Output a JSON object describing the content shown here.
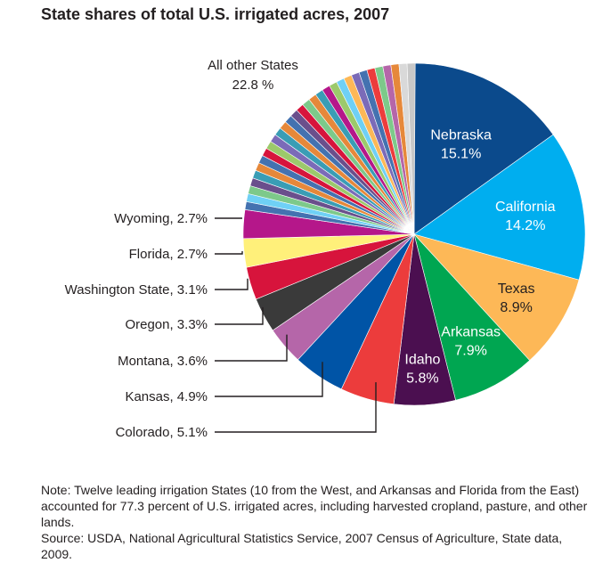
{
  "chart_data": {
    "type": "pie",
    "title": "State shares of total U.S. irrigated acres, 2007",
    "slices": [
      {
        "name": "Nebraska",
        "value": 15.1,
        "label": "15.1%",
        "color": "#0b4a8c",
        "text_color": "#ffffff"
      },
      {
        "name": "California",
        "value": 14.2,
        "label": "14.2%",
        "color": "#00aeef",
        "text_color": "#ffffff"
      },
      {
        "name": "Texas",
        "value": 8.9,
        "label": "8.9%",
        "color": "#fdb857",
        "text_color": "#231f20"
      },
      {
        "name": "Arkansas",
        "value": 7.9,
        "label": "7.9%",
        "color": "#00a651",
        "text_color": "#ffffff"
      },
      {
        "name": "Idaho",
        "value": 5.8,
        "label": "5.8%",
        "color": "#4b0f50",
        "text_color": "#ffffff"
      },
      {
        "name": "Colorado",
        "value": 5.1,
        "label": "Colorado, 5.1%",
        "color": "#ec3c3c"
      },
      {
        "name": "Kansas",
        "value": 4.9,
        "label": "Kansas, 4.9%",
        "color": "#0054a6"
      },
      {
        "name": "Montana",
        "value": 3.6,
        "label": "Montana, 3.6%",
        "color": "#b566a9"
      },
      {
        "name": "Oregon",
        "value": 3.3,
        "label": "Oregon, 3.3%",
        "color": "#3a3a3a"
      },
      {
        "name": "Washington State",
        "value": 3.1,
        "label": "Washington State, 3.1%",
        "color": "#d7143c"
      },
      {
        "name": "Florida",
        "value": 2.7,
        "label": "Florida, 2.7%",
        "color": "#fff07a"
      },
      {
        "name": "Wyoming",
        "value": 2.7,
        "label": "Wyoming, 2.7%",
        "color": "#b5178a"
      },
      {
        "name": "All other States",
        "value": 22.8,
        "label_lines": [
          "All other States",
          "22.8 %"
        ],
        "colors": [
          "#4472b0",
          "#6fd0f5",
          "#7dc98a",
          "#6a4f8c",
          "#3a9db5",
          "#e6883a",
          "#4472b0",
          "#d7143c",
          "#9cc96b",
          "#7b6bb8",
          "#3a9db5",
          "#e6883a",
          "#4472b0",
          "#6a4f8c",
          "#d7143c",
          "#7dc98a",
          "#e6883a",
          "#3a9db5",
          "#b5178a",
          "#9cc96b",
          "#6fd0f5",
          "#fdb857",
          "#7b6bb8",
          "#4472b0",
          "#ec3c3c",
          "#7dc98a",
          "#b566a9",
          "#e6883a",
          "#d9d9d9",
          "#c8c8c8"
        ]
      }
    ],
    "note_lines": [
      "Note: Twelve leading irrigation States (10 from the West, and Arkansas and Florida from the East) accounted for 77.3 percent of U.S. irrigated acres, including harvested cropland, pasture, and other lands.",
      "Source: USDA, National Agricultural Statistics Service, 2007 Census of Agriculture, State data, 2009."
    ]
  }
}
